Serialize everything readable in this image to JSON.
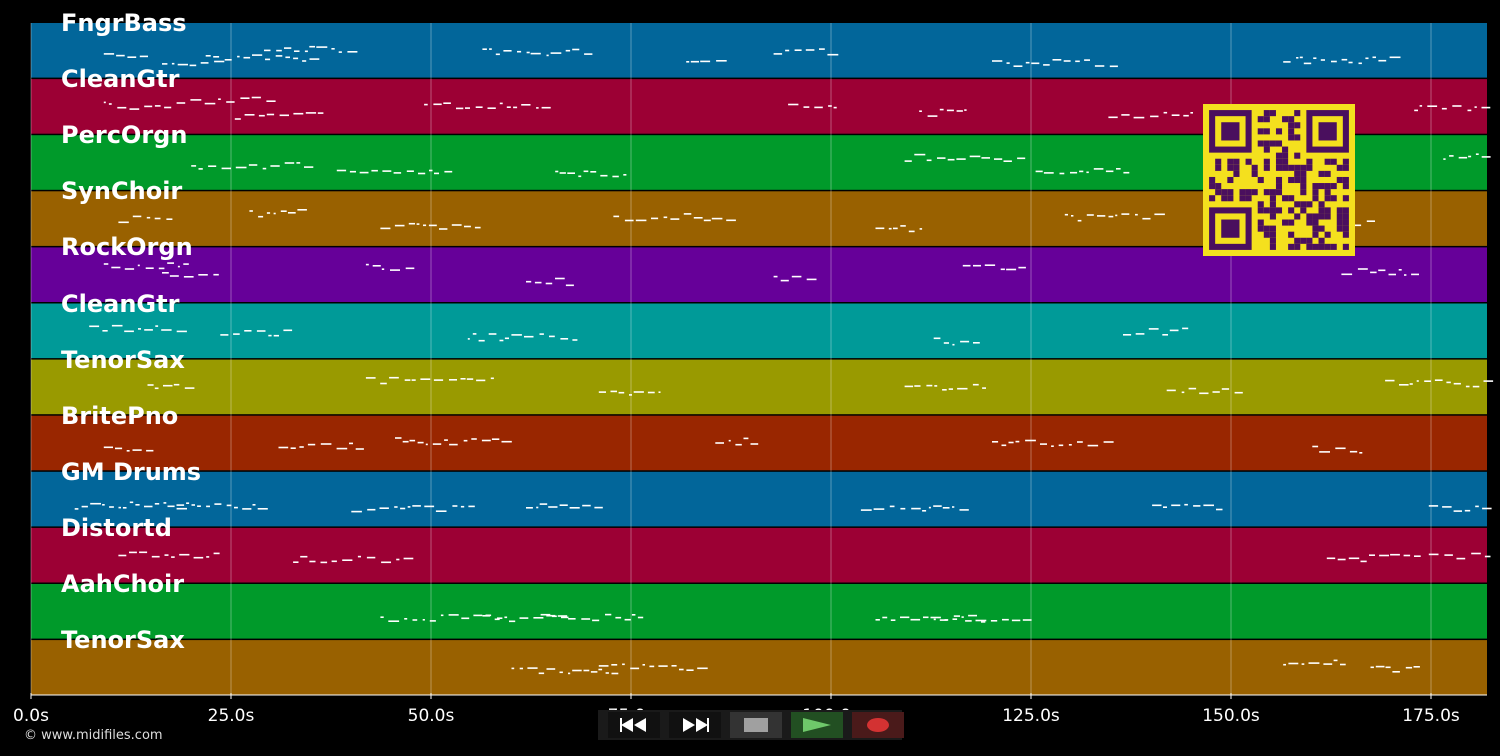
{
  "tracks": [
    {
      "name": "FngrBass",
      "color": "#02669a",
      "notes": [
        [
          0.5,
          52
        ],
        [
          0.9,
          42
        ],
        [
          1.2,
          48
        ],
        [
          1.6,
          61
        ],
        [
          3.1,
          56
        ],
        [
          4.5,
          47
        ],
        [
          5.1,
          58
        ],
        [
          6.6,
          41
        ],
        [
          8.6,
          45
        ]
      ]
    },
    {
      "name": "CleanGtr",
      "color": "#9c0034",
      "notes": [
        [
          0.5,
          60
        ],
        [
          1.0,
          68
        ],
        [
          1.4,
          45
        ],
        [
          2.7,
          59
        ],
        [
          5.2,
          62
        ],
        [
          6.1,
          50
        ],
        [
          7.4,
          46
        ],
        [
          9.5,
          55
        ]
      ]
    },
    {
      "name": "PercOrgn",
      "color": "#009a2a",
      "notes": [
        [
          1.1,
          54
        ],
        [
          2.1,
          45
        ],
        [
          3.6,
          43
        ],
        [
          6.0,
          66
        ],
        [
          6.9,
          46
        ],
        [
          8.3,
          48
        ],
        [
          9.7,
          69
        ]
      ]
    },
    {
      "name": "SynChoir",
      "color": "#996100",
      "notes": [
        [
          0.6,
          59
        ],
        [
          1.5,
          67
        ],
        [
          2.4,
          47
        ],
        [
          4.0,
          61
        ],
        [
          5.8,
          44
        ],
        [
          7.1,
          61
        ],
        [
          8.8,
          52
        ]
      ]
    },
    {
      "name": "RockOrgn",
      "color": "#660099",
      "notes": [
        [
          0.5,
          71
        ],
        [
          0.9,
          58
        ],
        [
          2.3,
          69
        ],
        [
          3.4,
          49
        ],
        [
          5.1,
          52
        ],
        [
          6.4,
          68
        ],
        [
          9.0,
          63
        ]
      ]
    },
    {
      "name": "CleanGtr",
      "color": "#009a98",
      "notes": [
        [
          0.4,
          62
        ],
        [
          1.3,
          56
        ],
        [
          3.0,
          50
        ],
        [
          6.2,
          44
        ],
        [
          7.5,
          58
        ]
      ]
    },
    {
      "name": "TenorSax",
      "color": "#999a00",
      "notes": [
        [
          0.8,
          58
        ],
        [
          2.3,
          69
        ],
        [
          3.9,
          51
        ],
        [
          6.0,
          60
        ],
        [
          7.8,
          55
        ],
        [
          9.3,
          64
        ]
      ]
    },
    {
      "name": "BritePno",
      "color": "#992600",
      "notes": [
        [
          0.5,
          52
        ],
        [
          1.7,
          55
        ],
        [
          2.5,
          62
        ],
        [
          4.7,
          61
        ],
        [
          6.6,
          59
        ],
        [
          8.8,
          50
        ]
      ]
    },
    {
      "name": "GM Drums",
      "color": "#02669a",
      "notes": [
        [
          0.3,
          50
        ],
        [
          1.0,
          48
        ],
        [
          2.2,
          46
        ],
        [
          3.4,
          50
        ],
        [
          5.7,
          47
        ],
        [
          7.7,
          49
        ],
        [
          9.6,
          47
        ]
      ]
    },
    {
      "name": "Distortd",
      "color": "#9c0034",
      "notes": [
        [
          0.6,
          60
        ],
        [
          1.8,
          53
        ],
        [
          8.9,
          55
        ],
        [
          9.6,
          57
        ]
      ]
    },
    {
      "name": "AahChoir",
      "color": "#009a2a",
      "notes": [
        [
          2.4,
          50
        ],
        [
          3.1,
          49
        ],
        [
          3.5,
          50
        ],
        [
          5.8,
          50
        ],
        [
          6.2,
          49
        ]
      ]
    },
    {
      "name": "TenorSax",
      "color": "#996100",
      "notes": [
        [
          3.3,
          55
        ],
        [
          3.9,
          60
        ],
        [
          8.6,
          67
        ],
        [
          9.2,
          56
        ]
      ]
    }
  ],
  "timeline": {
    "duration_s": 182,
    "ticks": [
      {
        "value": 0,
        "label": "0.0s"
      },
      {
        "value": 25,
        "label": "25.0s"
      },
      {
        "value": 50,
        "label": "50.0s"
      },
      {
        "value": 75,
        "label": "75.0s"
      },
      {
        "value": 100,
        "label": "100.0s"
      },
      {
        "value": 125,
        "label": "125.0s"
      },
      {
        "value": 150,
        "label": "150.0s"
      },
      {
        "value": 175,
        "label": "175.0s"
      }
    ]
  },
  "transport": {
    "rewind_icon": "rewind-icon",
    "fast_forward_icon": "fast-forward-icon",
    "stop_icon": "stop-icon",
    "play_icon": "play-icon",
    "record_icon": "record-icon",
    "play_color": "#6ec86a",
    "record_color": "#d33232"
  },
  "footer": {
    "copyright": "© www.midifiles.com"
  },
  "colors": {
    "qr_fg": "#f4e01e",
    "qr_bg": "#4a0f5e",
    "grid": "#ffffff55",
    "note": "#ffffff"
  }
}
